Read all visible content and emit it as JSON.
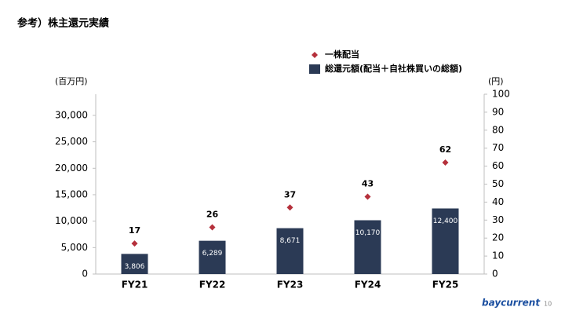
{
  "header": {
    "title": "参考）株主還元実績"
  },
  "chart_data": {
    "type": "bar",
    "categories": [
      "FY21",
      "FY22",
      "FY23",
      "FY24",
      "FY25"
    ],
    "ylabel": "(百万円)",
    "y2label": "(円)",
    "ylim": [
      0,
      34000
    ],
    "yticks": [
      0,
      {
        "value": 5000,
        "label": "5,000"
      },
      {
        "value": 10000,
        "label": "10,000"
      },
      {
        "value": 15000,
        "label": "15,000"
      },
      {
        "value": 20000,
        "label": "20,000"
      },
      {
        "value": 25000,
        "label": "25,000"
      },
      {
        "value": 30000,
        "label": "30,000"
      }
    ],
    "y2lim": [
      0,
      100
    ],
    "y2ticks": [
      0,
      10,
      20,
      30,
      40,
      50,
      60,
      70,
      80,
      90,
      100
    ],
    "grid": false,
    "series": [
      {
        "name": "一株配当",
        "type": "scatter",
        "axis": "y2",
        "color": "#b5303b",
        "values": [
          17,
          26,
          37,
          43,
          62
        ]
      },
      {
        "name": "総還元額(配当＋自社株買いの総額)",
        "type": "bar",
        "color": "#2b3a55",
        "values": [
          3806,
          6289,
          8671,
          10170,
          12400
        ],
        "value_labels": [
          "3,806",
          "6,289",
          "8,671",
          "10,170",
          "12,400"
        ]
      }
    ]
  },
  "footer": {
    "logo": "baycurrent",
    "page_number": "10"
  }
}
